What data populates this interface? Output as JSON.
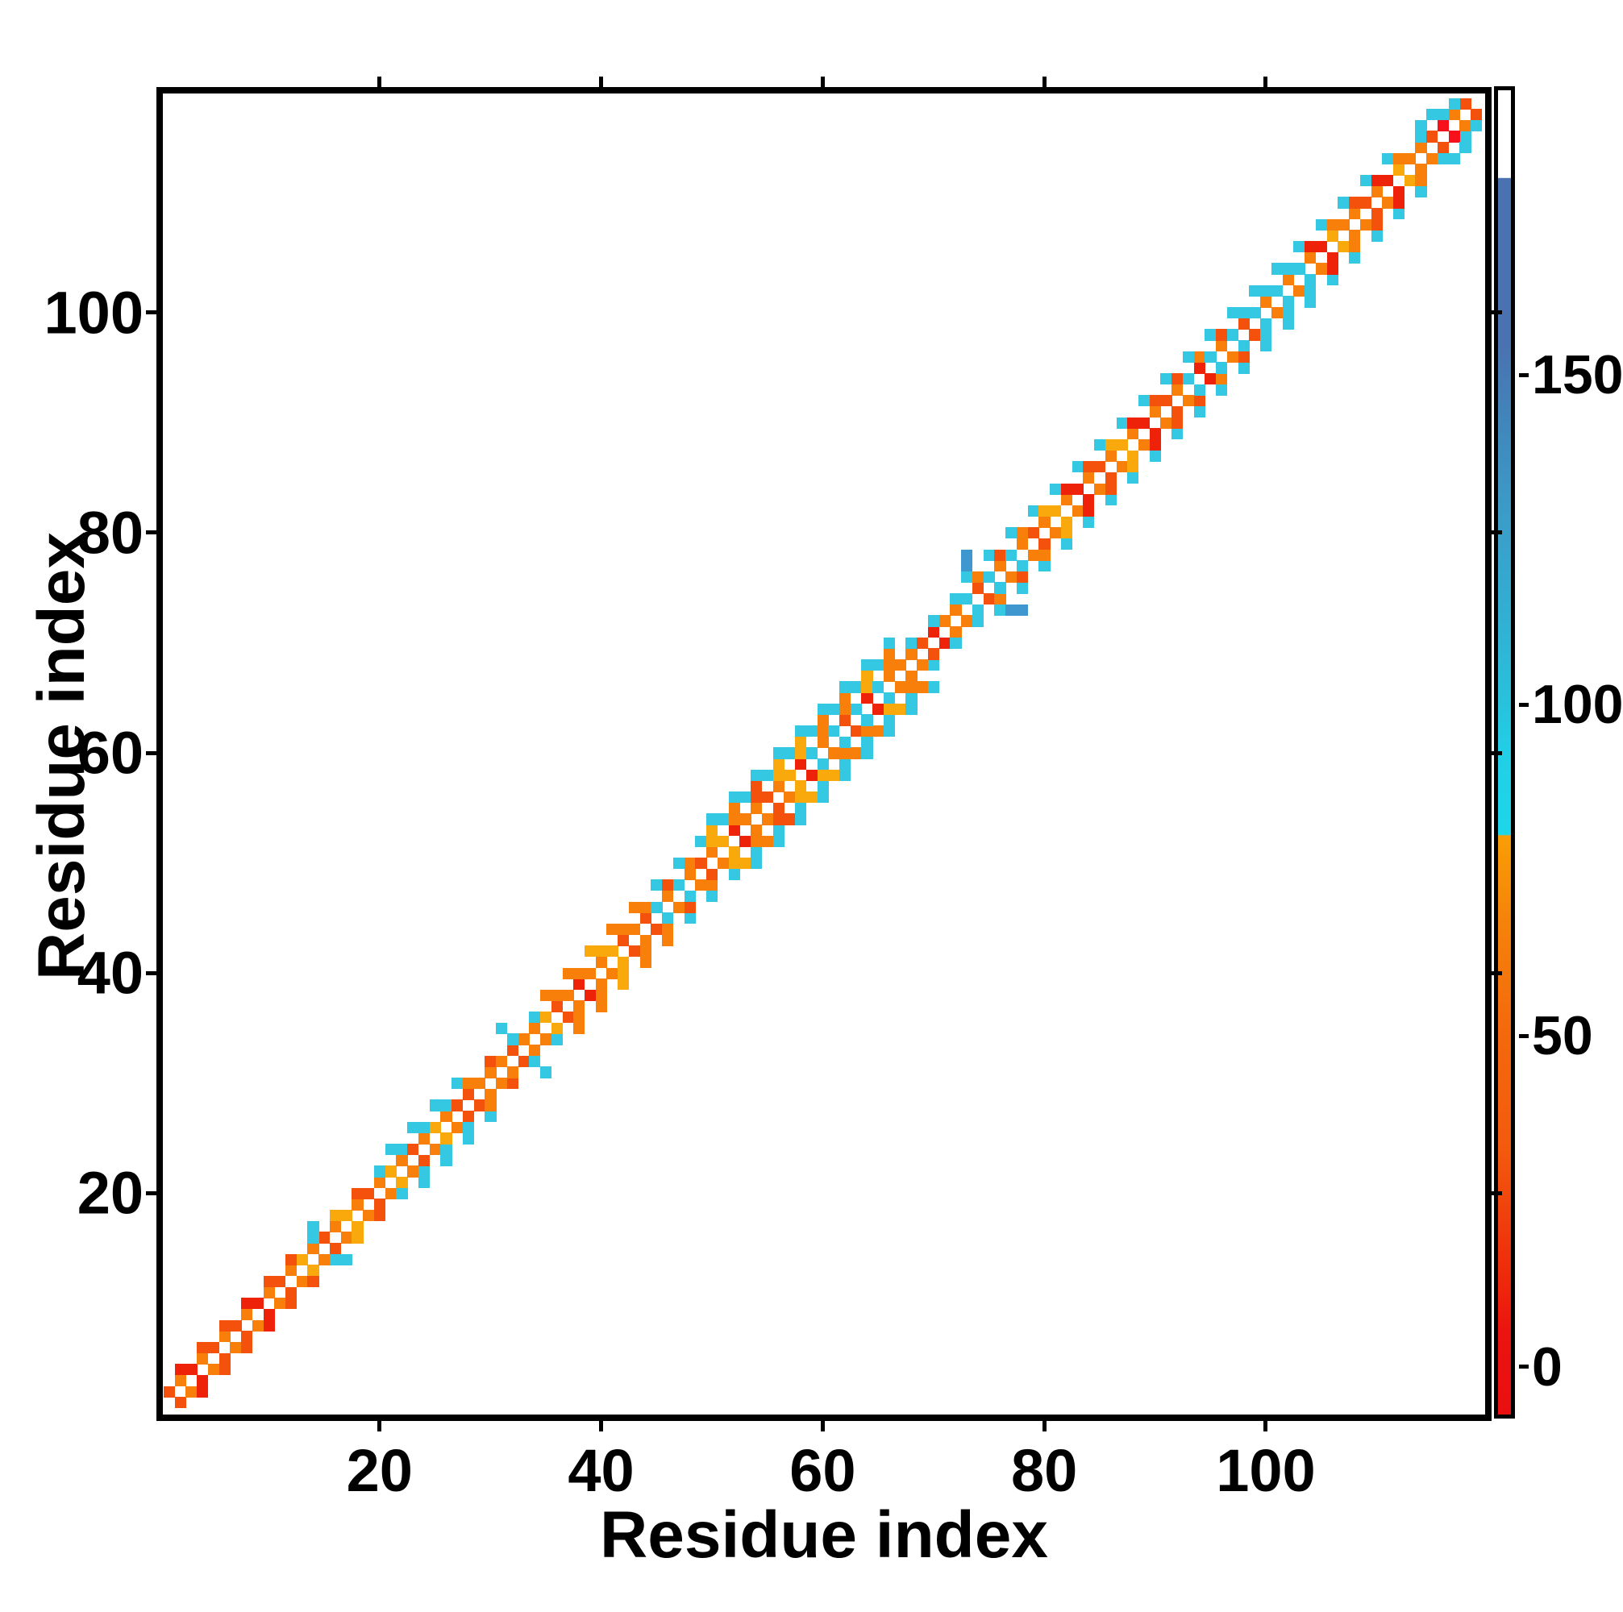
{
  "figure": {
    "background": "#ffffff"
  },
  "chart_data": {
    "type": "heatmap",
    "title": "",
    "xlabel": "Residue index",
    "ylabel": "Residue index",
    "x_ticks": [
      20,
      40,
      60,
      80,
      100
    ],
    "y_ticks": [
      20,
      40,
      60,
      80,
      100
    ],
    "n_residues": 119,
    "grid": "off",
    "description": "Residue-residue contact map: band of colored cells along the main diagonal (white diagonal), orange/red core with cyan flanks; colorbar at right",
    "colorbar": {
      "ticks": [
        0,
        50,
        100,
        150
      ],
      "tick_pcts": [
        96.4,
        71.4,
        46.4,
        21.5
      ],
      "gradient": [
        [
          "0%",
          "#ffffff"
        ],
        [
          "6.6%",
          "#ffffff"
        ],
        [
          "6.65%",
          "#4a72b0"
        ],
        [
          "19.3%",
          "#4a72b0"
        ],
        [
          "25%",
          "#4186ba"
        ],
        [
          "32%",
          "#3b9cc8"
        ],
        [
          "42%",
          "#2fb5d6"
        ],
        [
          "46.4%",
          "#28c2dd"
        ],
        [
          "50%",
          "#22cfe6"
        ],
        [
          "56.2%",
          "#1dd6ea"
        ],
        [
          "56.3%",
          "#f99e05"
        ],
        [
          "62.7%",
          "#f5830a"
        ],
        [
          "71%",
          "#f4690d"
        ],
        [
          "80%",
          "#f35a0e"
        ],
        [
          "85%",
          "#f0400c"
        ],
        [
          "90.5%",
          "#ee250b"
        ],
        [
          "93.7%",
          "#eb1410"
        ],
        [
          "100%",
          "#e90f10"
        ]
      ]
    },
    "palette": {
      "O": "#f8800a",
      "A": "#f9a90b",
      "R": "#f4510c",
      "D": "#ee2208",
      "B": "#f6111b",
      "C": "#35c8e2",
      "S": "#3e97cf"
    },
    "segments": [
      {
        "from": 1,
        "to": 12,
        "width": 2,
        "flank": null,
        "k1_alt": false,
        "k2_cyan": false,
        "core": [
          "O",
          "R",
          "O",
          "D",
          "O",
          "R"
        ]
      },
      {
        "from": 13,
        "to": 19,
        "width": 2,
        "flank": null,
        "k1_alt": false,
        "k2_cyan": false,
        "core": [
          "O",
          "A",
          "O",
          "R"
        ]
      },
      {
        "from": 20,
        "to": 27,
        "width": 3,
        "flank": "C",
        "k1_alt": false,
        "k2_cyan": true,
        "core": [
          "O",
          "A",
          "O",
          "R"
        ]
      },
      {
        "from": 28,
        "to": 30,
        "width": 2,
        "flank": null,
        "k1_alt": false,
        "k2_cyan": false,
        "core": [
          "O",
          "R",
          "O"
        ]
      },
      {
        "from": 31,
        "to": 34,
        "width": 2,
        "flank": null,
        "k1_alt": false,
        "k2_cyan": true,
        "core": [
          "O",
          "O",
          "R"
        ]
      },
      {
        "from": 35,
        "to": 43,
        "width": 3,
        "flank": null,
        "k1_alt": false,
        "k2_cyan": false,
        "core": [
          "R",
          "O",
          "D",
          "O",
          "O",
          "A"
        ]
      },
      {
        "from": 44,
        "to": 48,
        "width": 3,
        "flank": "C",
        "k1_alt": true,
        "k2_cyan": false,
        "core": [
          "O",
          "O",
          "R"
        ]
      },
      {
        "from": 49,
        "to": 57,
        "width": 4,
        "flank": "C",
        "k1_alt": false,
        "k2_cyan": false,
        "core": [
          "O",
          "R",
          "O",
          "A",
          "D",
          "O"
        ]
      },
      {
        "from": 58,
        "to": 66,
        "width": 4,
        "flank": "C",
        "k1_alt": true,
        "k2_cyan": false,
        "core": [
          "O",
          "O",
          "R",
          "O",
          "D",
          "A"
        ]
      },
      {
        "from": 67,
        "to": 72,
        "width": 2,
        "flank": null,
        "k1_alt": false,
        "k2_cyan": true,
        "core": [
          "O",
          "R",
          "D",
          "O"
        ]
      },
      {
        "from": 73,
        "to": 78,
        "width": 3,
        "flank": "C",
        "k1_alt": true,
        "k2_cyan": false,
        "core": [
          "O",
          "O",
          "R"
        ]
      },
      {
        "from": 79,
        "to": 91,
        "width": 3,
        "flank": "C",
        "k1_alt": false,
        "k2_cyan": false,
        "core": [
          "O",
          "R",
          "O",
          "A",
          "O",
          "D"
        ]
      },
      {
        "from": 92,
        "to": 97,
        "width": 3,
        "flank": "C",
        "k1_alt": true,
        "k2_cyan": false,
        "core": [
          "O",
          "R",
          "D",
          "O"
        ]
      },
      {
        "from": 98,
        "to": 103,
        "width": 3,
        "flank": "C",
        "k1_alt": true,
        "k2_cyan": true,
        "core": [
          "O",
          "O",
          "R"
        ]
      },
      {
        "from": 104,
        "to": 112,
        "width": 3,
        "flank": "C",
        "k1_alt": false,
        "k2_cyan": false,
        "core": [
          "O",
          "R",
          "O",
          "D",
          "A",
          "O"
        ]
      },
      {
        "from": 113,
        "to": 119,
        "width": 2,
        "flank": null,
        "k1_alt": false,
        "k2_cyan": true,
        "core": [
          "O",
          "R",
          "O"
        ]
      }
    ],
    "extra_cells": [
      [
        14,
        16,
        "C"
      ],
      [
        16,
        14,
        "C"
      ],
      [
        14,
        17,
        "C"
      ],
      [
        17,
        14,
        "C"
      ],
      [
        31,
        35,
        "C"
      ],
      [
        35,
        31,
        "C"
      ],
      [
        73,
        77,
        "S"
      ],
      [
        77,
        73,
        "S"
      ],
      [
        73,
        78,
        "S"
      ],
      [
        78,
        73,
        "S"
      ],
      [
        116,
        117,
        "B"
      ],
      [
        117,
        116,
        "B"
      ],
      [
        114,
        117,
        "C"
      ],
      [
        117,
        114,
        "C"
      ],
      [
        115,
        118,
        "C"
      ],
      [
        118,
        115,
        "C"
      ],
      [
        117,
        119,
        "C"
      ],
      [
        119,
        117,
        "C"
      ]
    ],
    "axis_range": {
      "x_left_residue": 0.44,
      "x_span": 119.36,
      "y_bottom_residue": -0.1,
      "y_span": 120
    }
  }
}
